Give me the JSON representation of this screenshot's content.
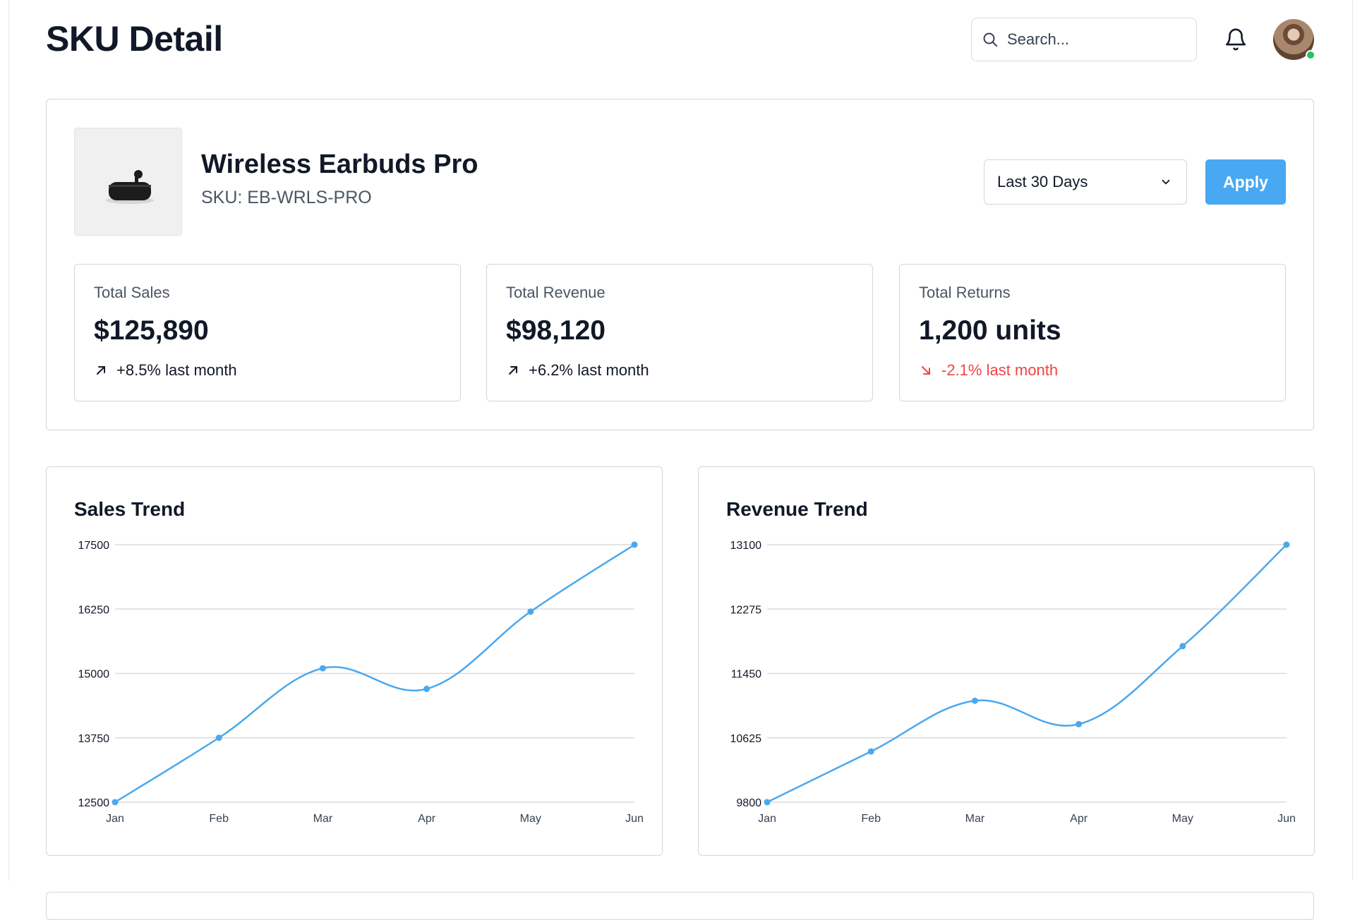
{
  "header": {
    "title": "SKU Detail",
    "search_placeholder": "Search...",
    "bell_icon": "bell-icon",
    "avatar_status_color": "#22c55e"
  },
  "product": {
    "name": "Wireless Earbuds Pro",
    "sku": "SKU: EB-WRLS-PRO",
    "image_icon": "earbuds-case-icon"
  },
  "filters": {
    "range_value": "Last 30 Days",
    "apply_label": "Apply",
    "accent_color": "#48a8f2"
  },
  "metrics": [
    {
      "label": "Total Sales",
      "value": "$125,890",
      "change": "+8.5% last month",
      "trend": "up"
    },
    {
      "label": "Total Revenue",
      "value": "$98,120",
      "change": "+6.2% last month",
      "trend": "up"
    },
    {
      "label": "Total Returns",
      "value": "1,200 units",
      "change": "-2.1% last month",
      "trend": "down"
    }
  ],
  "charts": {
    "sales": {
      "title": "Sales Trend"
    },
    "revenue": {
      "title": "Revenue Trend"
    }
  },
  "chart_data": [
    {
      "type": "line",
      "title": "Sales Trend",
      "categories": [
        "Jan",
        "Feb",
        "Mar",
        "Apr",
        "May",
        "Jun"
      ],
      "values": [
        12500,
        13750,
        15100,
        14700,
        16200,
        17500
      ],
      "yticks": [
        12500,
        13750,
        15000,
        16250,
        17500
      ],
      "ylim": [
        12500,
        17500
      ],
      "grid": true,
      "color": "#4aa8ee"
    },
    {
      "type": "line",
      "title": "Revenue Trend",
      "categories": [
        "Jan",
        "Feb",
        "Mar",
        "Apr",
        "May",
        "Jun"
      ],
      "values": [
        9800,
        10450,
        11100,
        10800,
        11800,
        13100
      ],
      "yticks": [
        9800,
        10625,
        11450,
        12275,
        13100
      ],
      "ylim": [
        9800,
        13100
      ],
      "grid": true,
      "color": "#4aa8ee"
    }
  ]
}
